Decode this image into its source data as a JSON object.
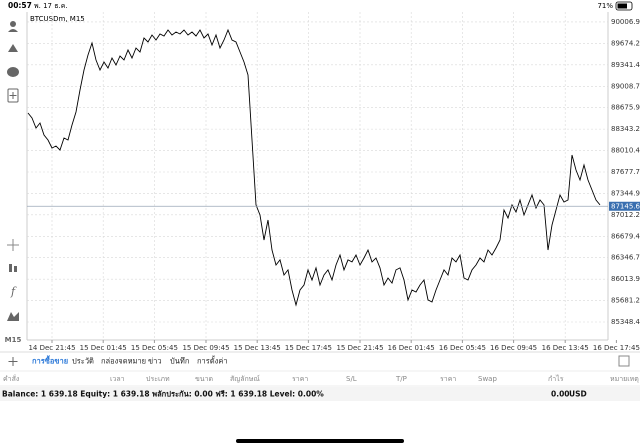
{
  "status_bar": {
    "time": "00:57",
    "date": "พ. 17 ธ.ค.",
    "battery": "71%"
  },
  "chart_data": {
    "type": "line",
    "title": "BTCUSDm, M15",
    "color": "#000000",
    "grid": true,
    "values": [
      88594,
      88516,
      88361,
      88439,
      88252,
      88175,
      88051,
      88082,
      88019,
      88206,
      88175,
      88408,
      88609,
      88951,
      89262,
      89495,
      89681,
      89417,
      89262,
      89386,
      89293,
      89448,
      89339,
      89479,
      89417,
      89572,
      89448,
      89603,
      89541,
      89759,
      89696,
      89805,
      89727,
      89821,
      89790,
      89883,
      89805,
      89852,
      89821,
      89883,
      89805,
      89852,
      89790,
      89883,
      89759,
      89821,
      89650,
      89805,
      89603,
      89727,
      89883,
      89727,
      89696,
      89541,
      89386,
      89184,
      88175,
      87166,
      87010,
      86622,
      86933,
      86467,
      86234,
      86312,
      86079,
      86157,
      85846,
      85613,
      85846,
      85923,
      86157,
      86001,
      86188,
      85923,
      86079,
      86157,
      86001,
      86234,
      86389,
      86157,
      86312,
      86281,
      86389,
      86234,
      86343,
      86467,
      86281,
      86343,
      86188,
      85923,
      86032,
      85954,
      86157,
      86188,
      86001,
      85691,
      85846,
      85815,
      85923,
      86001,
      85691,
      85659,
      85846,
      86001,
      86157,
      86079,
      86343,
      86281,
      86389,
      86032,
      86001,
      86157,
      86234,
      86343,
      86281,
      86467,
      86389,
      86498,
      86622,
      87088,
      86964,
      87166,
      87057,
      87243,
      87010,
      87166,
      87321,
      87119,
      87243,
      87166,
      86467,
      86855,
      87088,
      87321,
      87212,
      87243,
      87942,
      87709,
      87554,
      87787,
      87554,
      87398,
      87243,
      87166
    ],
    "xlim": [
      0,
      145
    ],
    "xticks": [
      {
        "value": 6,
        "label": "14 Dec 21:45"
      },
      {
        "value": 18.8,
        "label": "15 Dec 01:45"
      },
      {
        "value": 31.6,
        "label": "15 Dec 05:45"
      },
      {
        "value": 44.5,
        "label": "15 Dec 09:45"
      },
      {
        "value": 57.3,
        "label": "15 Dec 13:45"
      },
      {
        "value": 70.1,
        "label": "15 Dec 17:45"
      },
      {
        "value": 83,
        "label": "15 Dec 21:45"
      },
      {
        "value": 95.8,
        "label": "16 Dec 01:45"
      },
      {
        "value": 108.6,
        "label": "16 Dec 05:45"
      },
      {
        "value": 121.4,
        "label": "16 Dec 09:45"
      },
      {
        "value": 134.3,
        "label": "16 Dec 13:45"
      },
      {
        "value": 147.1,
        "label": "16 Dec 17:45"
      }
    ],
    "ylim": [
      85069,
      90162
    ],
    "yticks": [
      90006.95,
      {
        "value": 89674.2,
        "label": "89674.20"
      },
      89341.45,
      {
        "value": 89008.7,
        "label": "89008.70"
      },
      88675.95,
      {
        "value": 88343.2,
        "label": "88343.20"
      },
      88010.45,
      {
        "value": 87677.7,
        "label": "87677.70"
      },
      87344.95,
      {
        "value": 87012.2,
        "label": "87012.20"
      },
      86679.45,
      {
        "value": 86346.7,
        "label": "86346.70"
      },
      86013.95,
      {
        "value": 85681.2,
        "label": "85681.20"
      },
      85348.45
    ],
    "current_price": {
      "value": 87145.6,
      "label": "87145.60"
    }
  },
  "timeframe": "M15",
  "tabs": [
    "การซื้อขาย",
    "ประวัติ",
    "กล่องจดหมาย",
    "ข่าว",
    "บันทึก",
    "การตั้งค่า"
  ],
  "table": {
    "headers": [
      "คำสั่ง",
      "เวลา",
      "ประเภท",
      "ขนาด",
      "สัญลักษณ์",
      "ราคา",
      "S/L",
      "T/P",
      "ราคา",
      "Swap",
      "กำไร",
      "หมายเหตุ"
    ],
    "summary": "Balance: 1 639.18 Equity: 1 639.18 พลักประกัน: 0.00 ฟรี: 1 639.18 Level: 0.00%",
    "profit": "0.00",
    "currency": "USD"
  }
}
